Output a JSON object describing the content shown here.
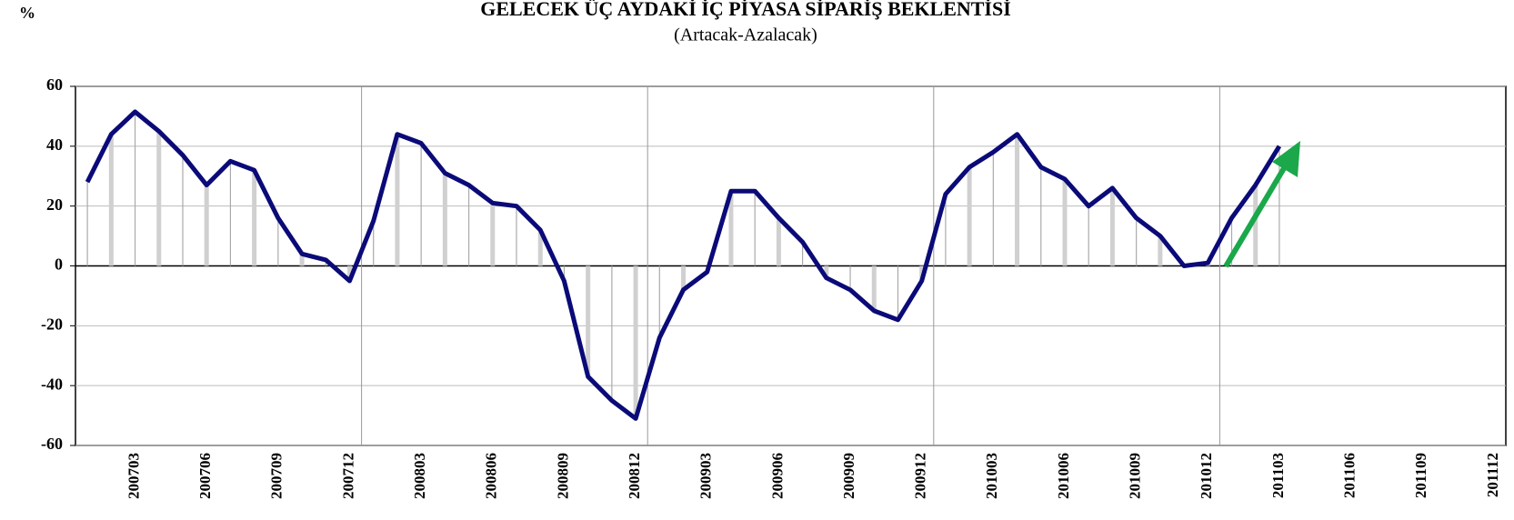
{
  "chart_data": {
    "type": "line",
    "title": "GELECEK ÜÇ AYDAKİ İÇ PİYASA SİPARİŞ BEKLENTİSİ",
    "subtitle": "(Artacak-Azalacak)",
    "y_label": "%",
    "categories": [
      null,
      null,
      "200703",
      null,
      null,
      "200706",
      null,
      null,
      "200709",
      null,
      null,
      "200712",
      null,
      null,
      "200803",
      null,
      null,
      "200806",
      null,
      null,
      "200809",
      null,
      null,
      "200812",
      null,
      null,
      "200903",
      null,
      null,
      "200906",
      null,
      null,
      "200909",
      null,
      null,
      "200912",
      null,
      null,
      "201003",
      null,
      null,
      "201006",
      null,
      null,
      "201009",
      null,
      null,
      "201012",
      null,
      null,
      "201103",
      null,
      null,
      "201106",
      null,
      null,
      "201109",
      null,
      null,
      "201112"
    ],
    "series": [
      {
        "color": "#0a0a78",
        "values": [
          28,
          44,
          51.5,
          45,
          37,
          27,
          35,
          32,
          16,
          4,
          2,
          -5,
          15,
          44,
          41,
          31,
          27,
          21,
          20,
          12,
          -5,
          -37,
          -45,
          -51,
          -24,
          -8,
          -2,
          25,
          25,
          16,
          8,
          -4,
          -8,
          -15,
          -18,
          -5,
          24,
          33,
          38,
          44,
          33,
          29,
          20,
          26,
          16,
          10,
          0,
          1,
          16,
          27,
          40,
          null,
          null,
          null,
          null,
          null,
          null,
          null,
          null,
          null
        ]
      }
    ],
    "ylim": [
      -60,
      60
    ],
    "yticks": [
      60,
      40,
      20,
      0,
      -20,
      -40,
      -60
    ],
    "grid": true
  }
}
